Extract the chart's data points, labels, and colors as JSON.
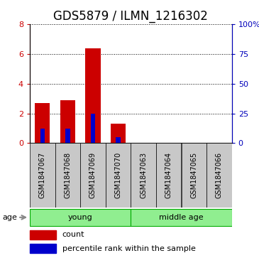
{
  "title": "GDS5879 / ILMN_1216302",
  "samples": [
    "GSM1847067",
    "GSM1847068",
    "GSM1847069",
    "GSM1847070",
    "GSM1847063",
    "GSM1847064",
    "GSM1847065",
    "GSM1847066"
  ],
  "red_values": [
    2.7,
    2.9,
    6.4,
    1.3,
    0.0,
    0.0,
    0.0,
    0.0
  ],
  "blue_values": [
    1.0,
    1.0,
    2.0,
    0.4,
    0.0,
    0.0,
    0.0,
    0.0
  ],
  "groups": [
    {
      "label": "young",
      "start": 0,
      "end": 4,
      "color": "#90EE90"
    },
    {
      "label": "middle age",
      "start": 4,
      "end": 8,
      "color": "#90EE90"
    }
  ],
  "group_label": "age",
  "ylim_left": [
    0,
    8
  ],
  "ylim_right": [
    0,
    100
  ],
  "yticks_left": [
    0,
    2,
    4,
    6,
    8
  ],
  "ytick_labels_left": [
    "0",
    "2",
    "4",
    "6",
    "8"
  ],
  "yticks_right": [
    0,
    25,
    50,
    75,
    100
  ],
  "ytick_labels_right": [
    "0",
    "25",
    "50",
    "75",
    "100%"
  ],
  "bar_color_red": "#CC0000",
  "bar_color_blue": "#0000CC",
  "bar_width": 0.6,
  "bg_color": "#FFFFFF",
  "tick_color_left": "#CC0000",
  "tick_color_right": "#0000BB",
  "label_fontsize": 8,
  "title_fontsize": 12,
  "sample_label_fontsize": 7,
  "gray_box_color": "#C8C8C8",
  "green_color": "#90EE90",
  "green_edge": "#00AA00"
}
